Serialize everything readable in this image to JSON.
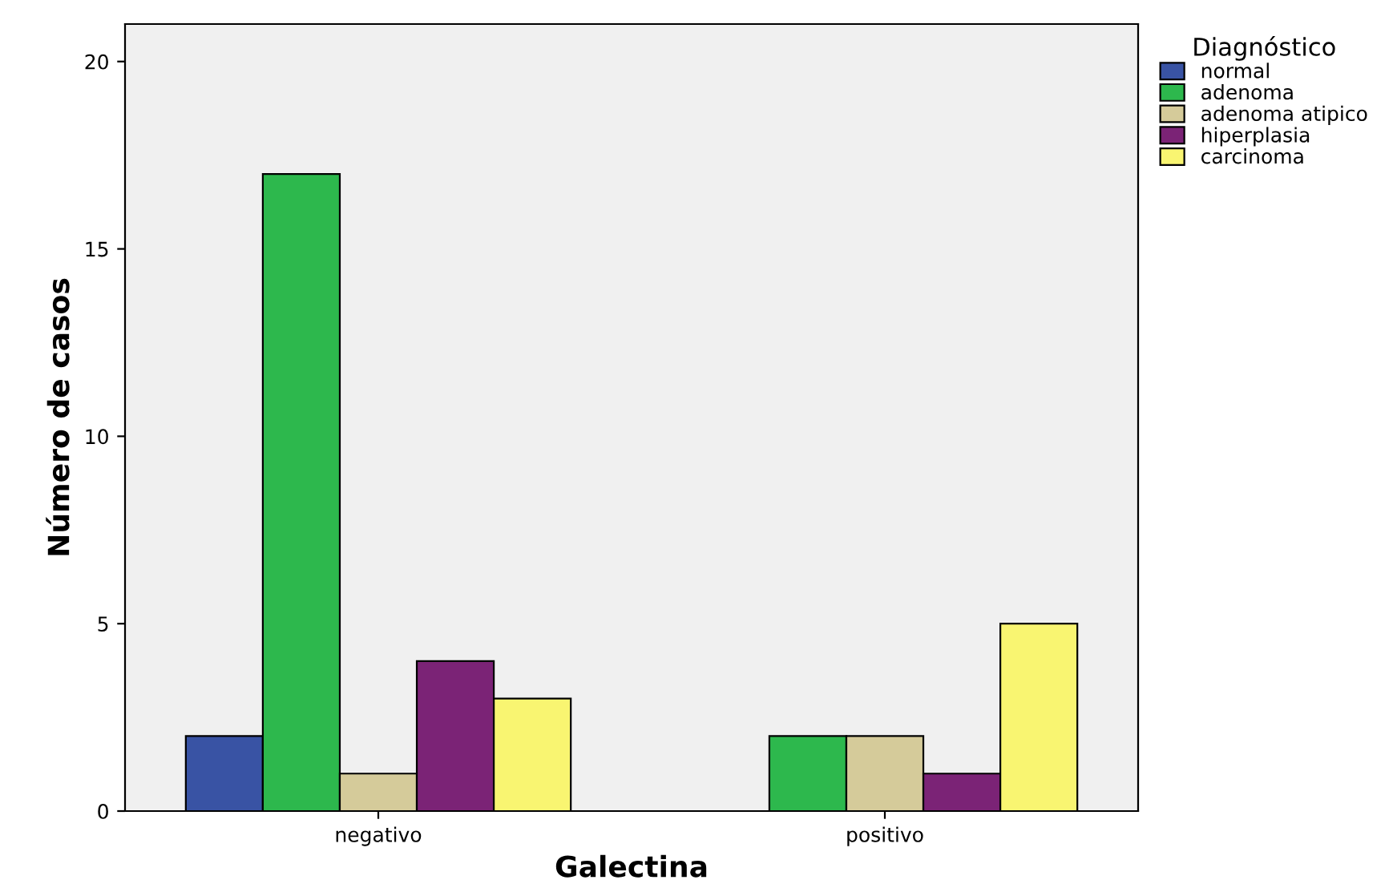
{
  "chart_data": {
    "type": "bar",
    "xlabel": "Galectina",
    "ylabel": "Número de casos",
    "legend_title": "Diagnóstico",
    "categories": [
      "negativo",
      "positivo"
    ],
    "series": [
      {
        "name": "normal",
        "color": "#3953a4",
        "values": [
          2,
          null
        ]
      },
      {
        "name": "adenoma",
        "color": "#2db84d",
        "values": [
          17,
          2
        ]
      },
      {
        "name": "adenoma atipico",
        "color": "#d5cb9a",
        "values": [
          1,
          2
        ]
      },
      {
        "name": "hiperplasia",
        "color": "#7b2376",
        "values": [
          4,
          1
        ]
      },
      {
        "name": "carcinoma",
        "color": "#f9f571",
        "values": [
          3,
          5
        ]
      }
    ],
    "ylim": [
      0,
      21
    ],
    "yticks": [
      0,
      5,
      10,
      15,
      20
    ],
    "grid": false,
    "legend": "top right"
  }
}
